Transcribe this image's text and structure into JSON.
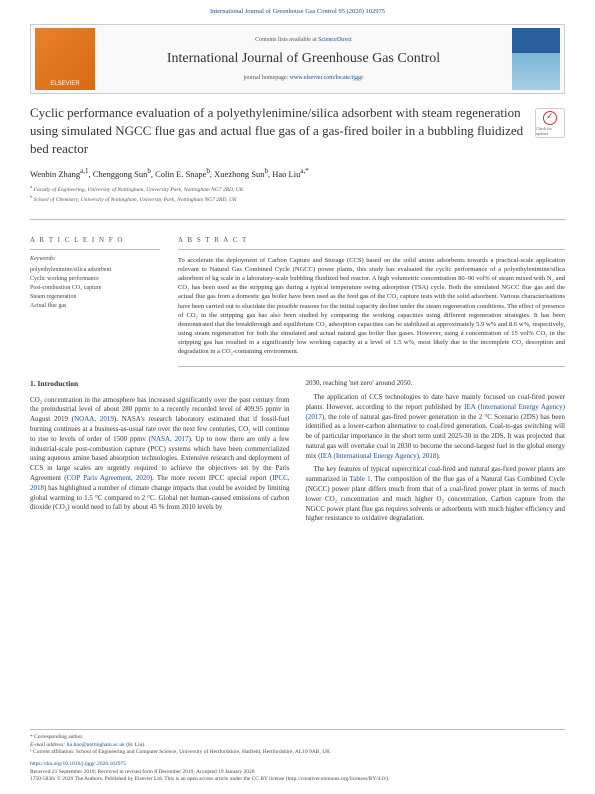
{
  "header": {
    "citation": "International Journal of Greenhouse Gas Control 95 (2020) 102975"
  },
  "banner": {
    "publisher_label": "ELSEVIER",
    "contents_prefix": "Contents lists available at ",
    "contents_link": "ScienceDirect",
    "journal_name": "International Journal of Greenhouse Gas Control",
    "homepage_prefix": "journal homepage: ",
    "homepage_link": "www.elsevier.com/locate/ijggc"
  },
  "title": "Cyclic performance evaluation of a polyethylenimine/silica adsorbent with steam regeneration using simulated NGCC flue gas and actual flue gas of a gas-fired boiler in a bubbling fluidized bed reactor",
  "check_badge": "Check for updates",
  "authors_html": "Wenbin Zhang<sup>a,1</sup>, Chenggong Sun<sup>b</sup>, Colin E. Snape<sup>b</sup>, Xuezhong Sun<sup>b</sup>, Hao Liu<sup>a,*</sup>",
  "affiliations": {
    "a": "Faculty of Engineering, University of Nottingham, University Park, Nottingham NG7 2RD, UK",
    "b": "School of Chemistry, University of Nottingham, University Park, Nottingham NG7 2RD, UK"
  },
  "info": {
    "heading": "A R T I C L E   I N F O",
    "keywords_label": "Keywords:",
    "keywords": "polyethylenimine/silica adsorbent\nCyclic working performance\nPost-combustion CO₂ capture\nSteam regeneration\nActual flue gas"
  },
  "abstract": {
    "heading": "A B S T R A C T",
    "text": "To accelerate the deployment of Carbon Capture and Storage (CCS) based on the solid amine adsorbents towards a practical-scale application relevant to Natural Gas Combined Cycle (NGCC) power plants, this study has evaluated the cyclic performance of a polyethylenimine/silica adsorbent of kg scale in a laboratory-scale bubbling fluidized bed reactor. A high volumetric concentration 80–90 vol% of steam mixed with N₂ and CO₂ has been used as the stripping gas during a typical temperature swing adsorption (TSA) cycle. Both the simulated NGCC flue gas and the actual flue gas from a domestic gas boiler have been used as the feed gas of the CO₂ capture tests with the solid adsorbent. Various characterisations have been carried out to elucidate the possible reasons for the initial capacity decline under the steam regeneration conditions. The effect of presence of CO₂ in the stripping gas has also been studied by comparing the working capacities using different regeneration strategies. It has been demonstrated that the breakthrough and equilibrium CO₂ adsorption capacities can be stabilized at approximately 5.9 w% and 8.6 w%, respectively, using steam regeneration for both the simulated and actual natural gas boiler flue gases. However, using a concentration of 15 vol% CO₂ in the stripping gas has resulted in a significantly low working capacity at a level of 1.5 w%, most likely due to the incomplete CO₂ desorption and degradation in a CO₂-containing environment."
  },
  "body": {
    "section_number": "1.",
    "section_title": "Introduction",
    "col1_p1": "CO₂ concentration in the atmosphere has increased significantly over the past century from the preindustrial level of about 280 ppmv to a recently recorded level of 409.95 ppmv in August 2019 (NOAA, 2019). NASA's research laboratory estimated that if fossil-fuel burning continues at a business-as-usual rate over the next few centuries, CO₂ will continue to rise to levels of order of 1500 ppmv (NASA, 2017). Up to now there are only a few industrial-scale post-combustion capture (PCC) systems which have been commercialized using aqueous amine based absorption technologies. Extensive research and deployment of CCS in large scales are urgently required to achieve the objectives set by the Paris Agreement (COP Paris Agreement, 2020). The more recent IPCC special report (IPCC, 2018) has highlighted a number of climate change impacts that could be avoided by limiting global warming to 1.5 °C compared to 2 °C. Global net human-caused emissions of carbon dioxide (CO₂) would need to fall by about 45 % from 2010 levels by",
    "col2_p1": "2030, reaching 'net zero' around 2050.",
    "col2_p2": "The application of CCS technologies to date have mainly focused on coal-fired power plants. However, according to the report published by IEA (International Energy Agency) (2017), the role of natural gas-fired power generation in the 2 °C Scenario (2DS) has been identified as a lower-carbon alternative to coal-fired generation. Coal-to-gas switching will be of particular importance in the short term until 2025-30 in the 2DS. It was projected that natural gas will overtake coal in 2030 to become the second-largest fuel in the global energy mix (IEA (International Energy Agency), 2018).",
    "col2_p3": "The key features of typical supercritical coal-fired and natural gas-fired power plants are summarized in Table 1. The composition of the flue gas of a Natural Gas Combined Cycle (NGCC) power plant differs much from that of a coal-fired power plant in terms of much lower CO₂ concentration and much higher O₂ concentration. Carbon capture from the NGCC power plant flue gas requires solvents or adsorbents with much higher efficiency and higher resistance to oxidative degradation.",
    "refs": {
      "noaa": "NOAA, 2019",
      "nasa": "NASA, 2017",
      "cop": "COP Paris Agreement, 2020",
      "ipcc": "IPCC, 2018",
      "iea2017": "IEA (International Energy Agency) (2017)",
      "iea2018": "IEA (International Energy Agency), 2018",
      "table1": "Table 1"
    }
  },
  "footer": {
    "corresponding": "* Corresponding author.",
    "email_label": "E-mail address: ",
    "email": "liu.hao@nottingham.ac.uk",
    "email_name": " (H. Liu).",
    "current_affil": "¹ Current affiliation: School of Engineering and Computer Science, University of Hertfordshire, Hatfield, Hertfordshire, AL10 9AB, UK",
    "doi": "https://doi.org/10.1016/j.ijggc.2020.102975",
    "received": "Received 21 September 2018; Received in revised form 8 December 2019; Accepted 19 January 2020",
    "copyright": "1750-5836/ © 2020 The Authors. Published by Elsevier Ltd. This is an open access article under the CC BY license (http://creativecommons.org/licenses/BY/4.0/)."
  }
}
